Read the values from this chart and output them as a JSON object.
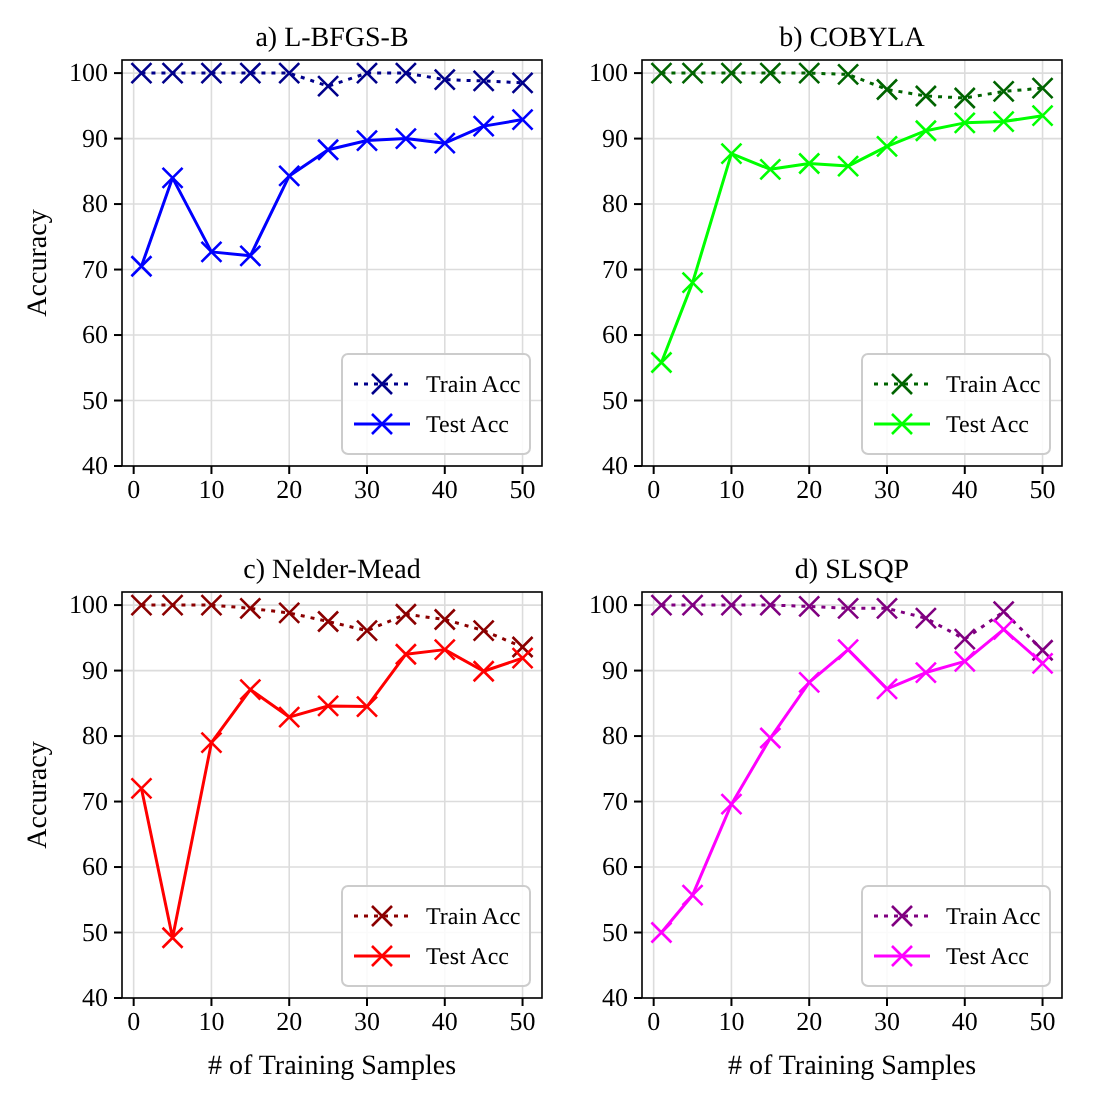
{
  "chart_data": [
    {
      "type": "line",
      "title": "a) L-BFGS-B",
      "ylabel": "Accuracy",
      "x": [
        1,
        5,
        10,
        15,
        20,
        25,
        30,
        35,
        40,
        45,
        50
      ],
      "xlim": [
        -1.5,
        52.5
      ],
      "xticks": [
        0,
        10,
        20,
        30,
        40,
        50
      ],
      "ylim": [
        40,
        102
      ],
      "yticks": [
        40,
        50,
        60,
        70,
        80,
        90,
        100
      ],
      "grid": true,
      "legend": "bottom right",
      "marker": "cross",
      "series": [
        {
          "name": "Train Acc",
          "color": "#00008b",
          "line_style": "dotted",
          "values": [
            100,
            100,
            100,
            100,
            100,
            98,
            100,
            100,
            99,
            98.8,
            98.5
          ]
        },
        {
          "name": "Test Acc",
          "color": "#0000ff",
          "line_style": "solid",
          "values": [
            70.5,
            84,
            72.7,
            72.1,
            84.3,
            88.3,
            89.7,
            90,
            89.3,
            91.9,
            92.9
          ]
        }
      ]
    },
    {
      "type": "line",
      "title": "b) COBYLA",
      "x": [
        1,
        5,
        10,
        15,
        20,
        25,
        30,
        35,
        40,
        45,
        50
      ],
      "xlim": [
        -1.5,
        52.5
      ],
      "xticks": [
        0,
        10,
        20,
        30,
        40,
        50
      ],
      "ylim": [
        40,
        102
      ],
      "yticks": [
        40,
        50,
        60,
        70,
        80,
        90,
        100
      ],
      "grid": true,
      "legend": "bottom right",
      "marker": "cross",
      "series": [
        {
          "name": "Train Acc",
          "color": "#006400",
          "line_style": "dotted",
          "values": [
            100,
            100,
            100,
            100,
            100,
            99.8,
            97.5,
            96.5,
            96.2,
            97.2,
            97.7
          ]
        },
        {
          "name": "Test Acc",
          "color": "#00ff00",
          "line_style": "solid",
          "values": [
            55.8,
            68,
            87.7,
            85.3,
            86.2,
            85.8,
            88.8,
            91.2,
            92.4,
            92.6,
            93.5
          ]
        }
      ]
    },
    {
      "type": "line",
      "title": "c) Nelder-Mead",
      "xlabel": "# of Training Samples",
      "ylabel": "Accuracy",
      "x": [
        1,
        5,
        10,
        15,
        20,
        25,
        30,
        35,
        40,
        45,
        50
      ],
      "xlim": [
        -1.5,
        52.5
      ],
      "xticks": [
        0,
        10,
        20,
        30,
        40,
        50
      ],
      "ylim": [
        40,
        102
      ],
      "yticks": [
        40,
        50,
        60,
        70,
        80,
        90,
        100
      ],
      "grid": true,
      "legend": "bottom right",
      "marker": "cross",
      "series": [
        {
          "name": "Train Acc",
          "color": "#8b0000",
          "line_style": "dotted",
          "values": [
            100,
            100,
            100,
            99.5,
            98.8,
            97.5,
            96.1,
            98.6,
            97.8,
            96.1,
            93.6
          ]
        },
        {
          "name": "Test Acc",
          "color": "#ff0000",
          "line_style": "solid",
          "values": [
            72,
            49.2,
            79,
            87.1,
            82.9,
            84.6,
            84.5,
            92.5,
            93.2,
            89.9,
            91.9
          ]
        }
      ]
    },
    {
      "type": "line",
      "title": "d) SLSQP",
      "xlabel": "# of Training Samples",
      "x": [
        1,
        5,
        10,
        15,
        20,
        25,
        30,
        35,
        40,
        45,
        50
      ],
      "xlim": [
        -1.5,
        52.5
      ],
      "xticks": [
        0,
        10,
        20,
        30,
        40,
        50
      ],
      "ylim": [
        40,
        102
      ],
      "yticks": [
        40,
        50,
        60,
        70,
        80,
        90,
        100
      ],
      "grid": true,
      "legend": "bottom right",
      "marker": "cross",
      "series": [
        {
          "name": "Train Acc",
          "color": "#800080",
          "line_style": "dotted",
          "values": [
            100,
            100,
            100,
            100,
            99.8,
            99.5,
            99.5,
            98,
            94.8,
            99,
            93.1
          ]
        },
        {
          "name": "Test Acc",
          "color": "#ff00ff",
          "line_style": "solid",
          "values": [
            50,
            55.7,
            69.6,
            79.7,
            88.2,
            93.2,
            87.2,
            89.7,
            91.4,
            96.3,
            91.1
          ]
        }
      ]
    }
  ]
}
